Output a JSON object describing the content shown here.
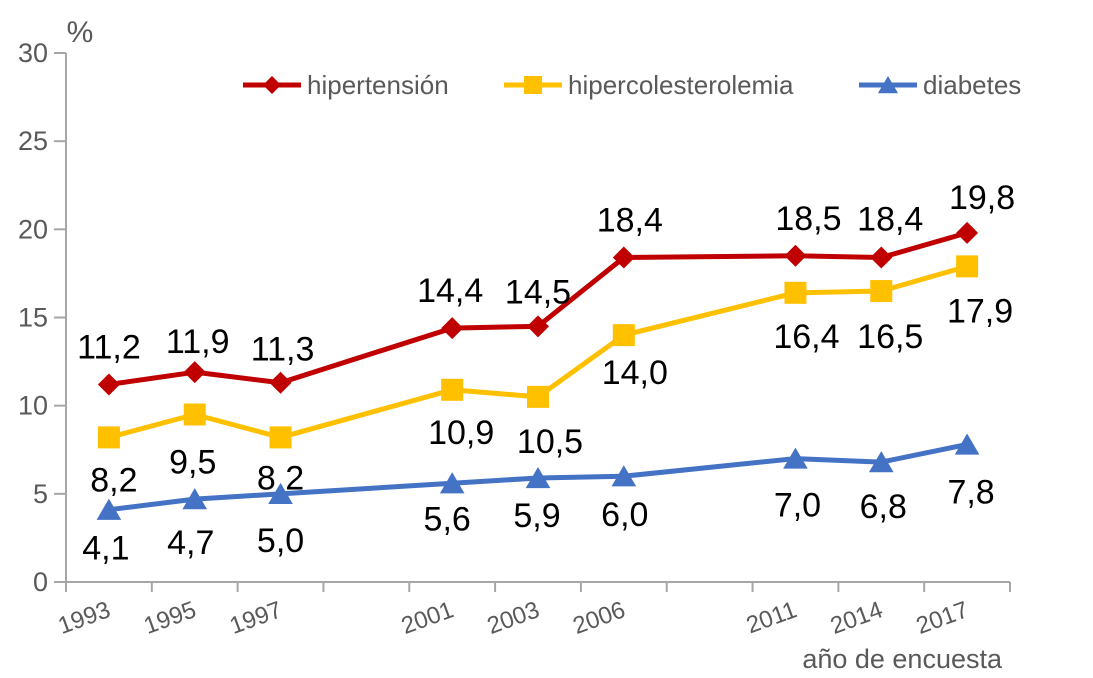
{
  "chart_data": {
    "type": "line",
    "title": "",
    "x_axis_title": "año de encuesta",
    "y_axis_title": "%",
    "ylim": [
      0,
      30
    ],
    "y_ticks": [
      0,
      5,
      10,
      15,
      20,
      25,
      30
    ],
    "grid": false,
    "legend_position": "top",
    "decimal_separator": ",",
    "categories": [
      "1993",
      "1995",
      "1997",
      "",
      "2001",
      "2003",
      "2006",
      "",
      "2011",
      "2014",
      "2017"
    ],
    "series": [
      {
        "name": "hipertensión",
        "color": "#C00000",
        "marker": "diamond",
        "values": [
          11.2,
          11.9,
          11.3,
          null,
          14.4,
          14.5,
          18.4,
          null,
          18.5,
          18.4,
          19.8
        ]
      },
      {
        "name": "hipercolesterolemia",
        "color": "#FFC000",
        "marker": "square",
        "values": [
          8.2,
          9.5,
          8.2,
          null,
          10.9,
          10.5,
          14.0,
          null,
          16.4,
          16.5,
          17.9
        ]
      },
      {
        "name": "diabetes",
        "color": "#4472C4",
        "marker": "triangle",
        "values": [
          4.1,
          4.7,
          5.0,
          null,
          5.6,
          5.9,
          6.0,
          null,
          7.0,
          6.8,
          7.8
        ]
      }
    ],
    "colors": {
      "axis_line": "#A6A6A6",
      "axis_text": "#595959",
      "data_label_text": "#000000",
      "background": "#FFFFFF"
    }
  }
}
